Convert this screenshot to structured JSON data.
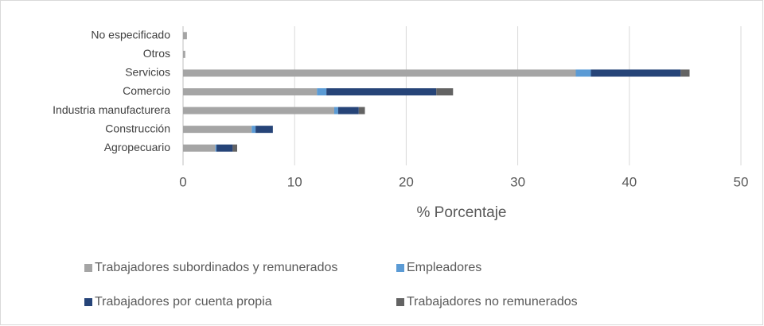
{
  "chart_data": {
    "type": "stacked_bar_horizontal",
    "categories": [
      "No especificado",
      "Otros",
      "Servicios",
      "Comercio",
      "Industria manufacturera",
      "Construcción",
      "Agropecuario"
    ],
    "series": [
      {
        "name": "Trabajadores subordinados y remunerados",
        "color": "#a5a5a5",
        "values": [
          0.35,
          0.2,
          35.2,
          12.0,
          13.55,
          6.15,
          2.9
        ]
      },
      {
        "name": "Empleadores",
        "color": "#5b9bd5",
        "values": [
          0,
          0,
          1.35,
          0.85,
          0.35,
          0.35,
          0.1
        ]
      },
      {
        "name": "Trabajadores por cuenta propia",
        "color": "#264478",
        "values": [
          0,
          0,
          8.05,
          9.85,
          1.85,
          1.55,
          1.45
        ]
      },
      {
        "name": "Trabajadores no remunerados",
        "color": "#636363",
        "values": [
          0,
          0,
          0.8,
          1.5,
          0.55,
          0,
          0.4
        ]
      }
    ],
    "xlabel": "% Porcentaje",
    "xlim": [
      0,
      50
    ],
    "xticks": [
      0,
      10,
      20,
      30,
      40,
      50
    ],
    "grid": true
  }
}
